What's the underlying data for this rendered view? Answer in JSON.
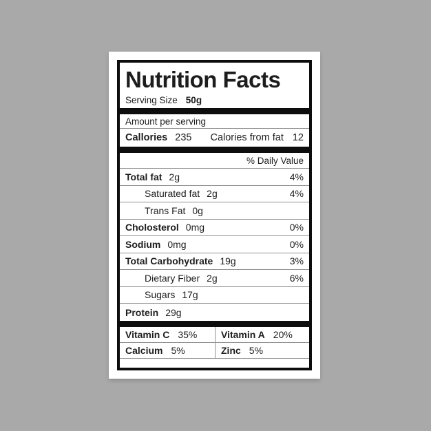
{
  "background_color": "#a9a9a9",
  "colors": {
    "card": "#ffffff",
    "border_and_bars": "#0d0d0d",
    "thin_line": "#8f8f8f",
    "text": "#1d1d1d"
  },
  "label": {
    "title": "Nutrition Facts",
    "serving": {
      "label": "Serving Size",
      "value": "50g"
    },
    "amount_per_serving": "Amount per serving",
    "calories": {
      "label": "Callories",
      "value": "235",
      "from_fat_label": "Calories from fat",
      "from_fat_value": "12"
    },
    "daily_value_header": "% Daily Value",
    "nutrients": [
      {
        "label": "Total fat",
        "value": "2g",
        "dv": "4%",
        "bold": true,
        "indent": false
      },
      {
        "label": "Saturated fat",
        "value": "2g",
        "dv": "4%",
        "bold": false,
        "indent": true
      },
      {
        "label": "Trans Fat",
        "value": "0g",
        "dv": "",
        "bold": false,
        "indent": true
      },
      {
        "label": "Cholosterol",
        "value": "0mg",
        "dv": "0%",
        "bold": true,
        "indent": false
      },
      {
        "label": "Sodium",
        "value": "0mg",
        "dv": "0%",
        "bold": true,
        "indent": false
      },
      {
        "label": "Total Carbohydrate",
        "value": "19g",
        "dv": "3%",
        "bold": true,
        "indent": false
      },
      {
        "label": "Dietary Fiber",
        "value": "2g",
        "dv": "6%",
        "bold": false,
        "indent": true
      },
      {
        "label": "Sugars",
        "value": "17g",
        "dv": "",
        "bold": false,
        "indent": true
      },
      {
        "label": "Protein",
        "value": "29g",
        "dv": "",
        "bold": true,
        "indent": false
      }
    ],
    "micronutrients": [
      {
        "label": "Vitamin C",
        "value": "35%"
      },
      {
        "label": "Vitamin A",
        "value": "20%"
      },
      {
        "label": "Calcium",
        "value": "5%"
      },
      {
        "label": "Zinc",
        "value": "5%"
      }
    ]
  }
}
